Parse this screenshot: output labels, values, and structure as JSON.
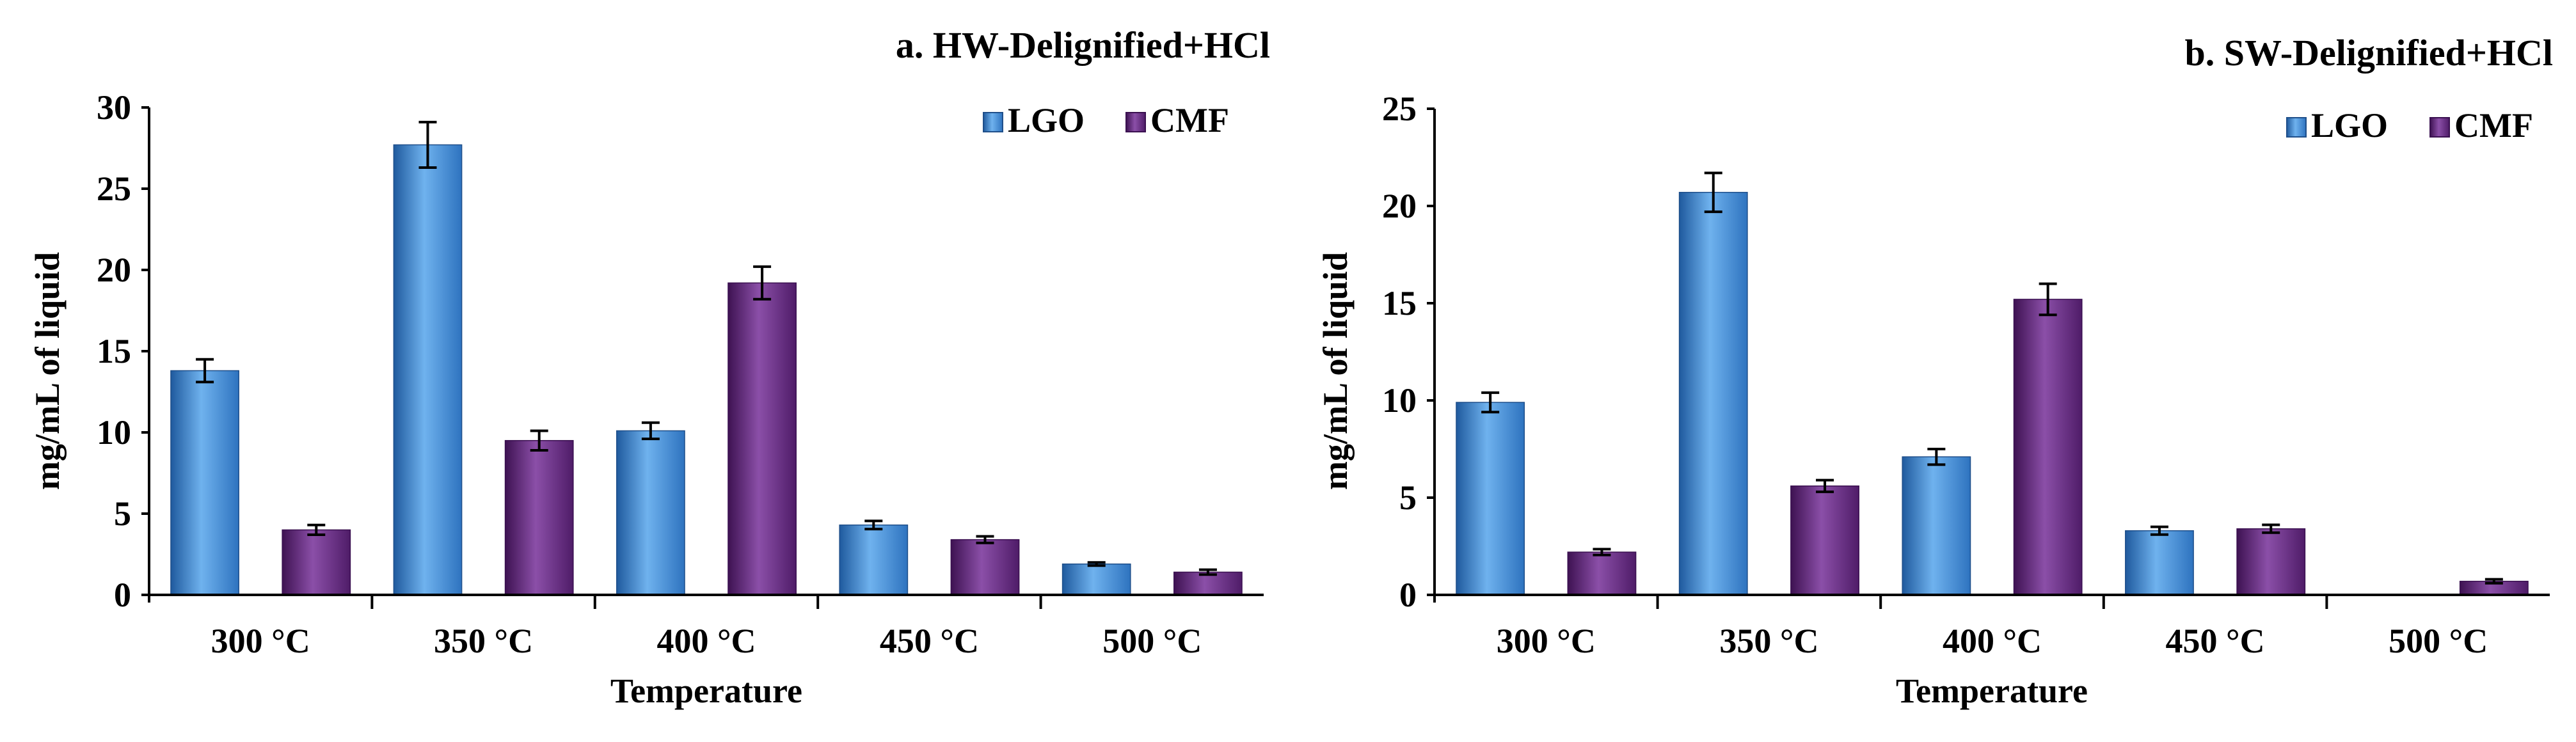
{
  "chart_data": [
    {
      "type": "bar",
      "title": "a. HW-Delignified+HCl",
      "xlabel": "Temperature",
      "ylabel": "mg/mL of liquid",
      "ylim": [
        0,
        30
      ],
      "yticks": [
        0,
        5,
        10,
        15,
        20,
        25,
        30
      ],
      "categories": [
        "300 °C",
        "350 °C",
        "400 °C",
        "450 °C",
        "500 °C"
      ],
      "legend_position": "top-right",
      "series": [
        {
          "name": "LGO",
          "color": "#3B86CF",
          "values": [
            13.8,
            27.7,
            10.1,
            4.3,
            1.9
          ],
          "errors": [
            0.7,
            1.4,
            0.5,
            0.25,
            0.1
          ]
        },
        {
          "name": "CMF",
          "color": "#6A2C86",
          "values": [
            4.0,
            9.5,
            19.2,
            3.4,
            1.4
          ],
          "errors": [
            0.3,
            0.6,
            1.0,
            0.2,
            0.15
          ]
        }
      ]
    },
    {
      "type": "bar",
      "title": "b. SW-Delignified+HCl",
      "xlabel": "Temperature",
      "ylabel": "mg/mL of liquid",
      "ylim": [
        0,
        25
      ],
      "yticks": [
        0,
        5,
        10,
        15,
        20,
        25
      ],
      "categories": [
        "300 °C",
        "350 °C",
        "400 °C",
        "450 °C",
        "500 °C"
      ],
      "legend_position": "top-right",
      "series": [
        {
          "name": "LGO",
          "color": "#3B86CF",
          "values": [
            9.9,
            20.7,
            7.1,
            3.3,
            0
          ],
          "errors": [
            0.5,
            1.0,
            0.4,
            0.2,
            0
          ]
        },
        {
          "name": "CMF",
          "color": "#6A2C86",
          "values": [
            2.2,
            5.6,
            15.2,
            3.4,
            0.7
          ],
          "errors": [
            0.15,
            0.3,
            0.8,
            0.2,
            0.1
          ]
        }
      ]
    }
  ]
}
